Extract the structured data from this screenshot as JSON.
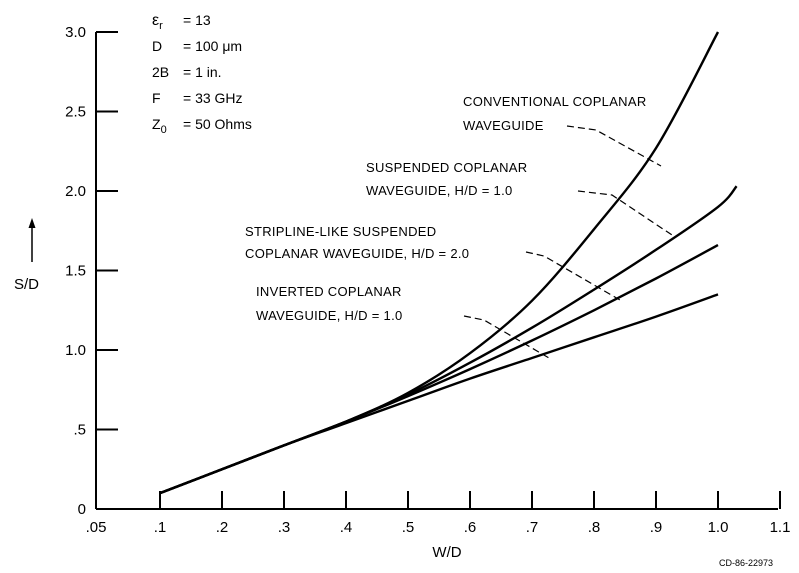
{
  "chart_data": {
    "type": "line",
    "xlabel": "W/D",
    "ylabel": "S/D",
    "xlim": [
      0.05,
      1.1
    ],
    "ylim": [
      0,
      3.0
    ],
    "x_ticks": [
      ".05",
      ".1",
      ".2",
      ".3",
      ".4",
      ".5",
      ".6",
      ".7",
      ".8",
      ".9",
      "1.0",
      "1.1"
    ],
    "y_ticks": [
      "0",
      ".5",
      "1.0",
      "1.5",
      "2.0",
      "2.5",
      "3.0"
    ],
    "parameters": [
      "ε_r = 13",
      "D = 100 μm",
      "2B = 1 in.",
      "F = 33 GHz",
      "Z_0 = 50 Ohms"
    ],
    "series": [
      {
        "name": "CONVENTIONAL COPLANAR WAVEGUIDE",
        "x": [
          0.1,
          0.2,
          0.3,
          0.4,
          0.5,
          0.6,
          0.7,
          0.8,
          0.9,
          1.0
        ],
        "y": [
          0.1,
          0.25,
          0.4,
          0.55,
          0.73,
          0.98,
          1.31,
          1.76,
          2.27,
          3.0
        ]
      },
      {
        "name": "SUSPENDED COPLANAR WAVEGUIDE, H/D = 1.0",
        "x": [
          0.1,
          0.2,
          0.3,
          0.4,
          0.5,
          0.6,
          0.7,
          0.8,
          0.9,
          1.0,
          1.03
        ],
        "y": [
          0.1,
          0.25,
          0.4,
          0.55,
          0.72,
          0.92,
          1.14,
          1.38,
          1.63,
          1.9,
          2.03
        ]
      },
      {
        "name": "STRIPLINE-LIKE SUSPENDED COPLANAR WAVEGUIDE, H/D = 2.0",
        "x": [
          0.1,
          0.2,
          0.3,
          0.4,
          0.5,
          0.6,
          0.7,
          0.8,
          0.9,
          1.0
        ],
        "y": [
          0.1,
          0.25,
          0.4,
          0.55,
          0.71,
          0.88,
          1.06,
          1.25,
          1.45,
          1.66
        ]
      },
      {
        "name": "INVERTED COPLANAR WAVEGUIDE, H/D = 1.0",
        "x": [
          0.1,
          0.2,
          0.3,
          0.4,
          0.5,
          0.6,
          0.7,
          0.8,
          0.9,
          1.0
        ],
        "y": [
          0.1,
          0.25,
          0.4,
          0.54,
          0.68,
          0.82,
          0.95,
          1.08,
          1.21,
          1.35
        ]
      }
    ],
    "annotations": {
      "conventional": [
        "CONVENTIONAL COPLANAR",
        "WAVEGUIDE"
      ],
      "suspended": [
        "SUSPENDED COPLANAR",
        "WAVEGUIDE, H/D = 1.0"
      ],
      "stripline": [
        "STRIPLINE-LIKE SUSPENDED",
        "COPLANAR WAVEGUIDE, H/D = 2.0"
      ],
      "inverted": [
        "INVERTED COPLANAR",
        "WAVEGUIDE, H/D = 1.0"
      ]
    },
    "figure_code": "CD-86-22973"
  }
}
